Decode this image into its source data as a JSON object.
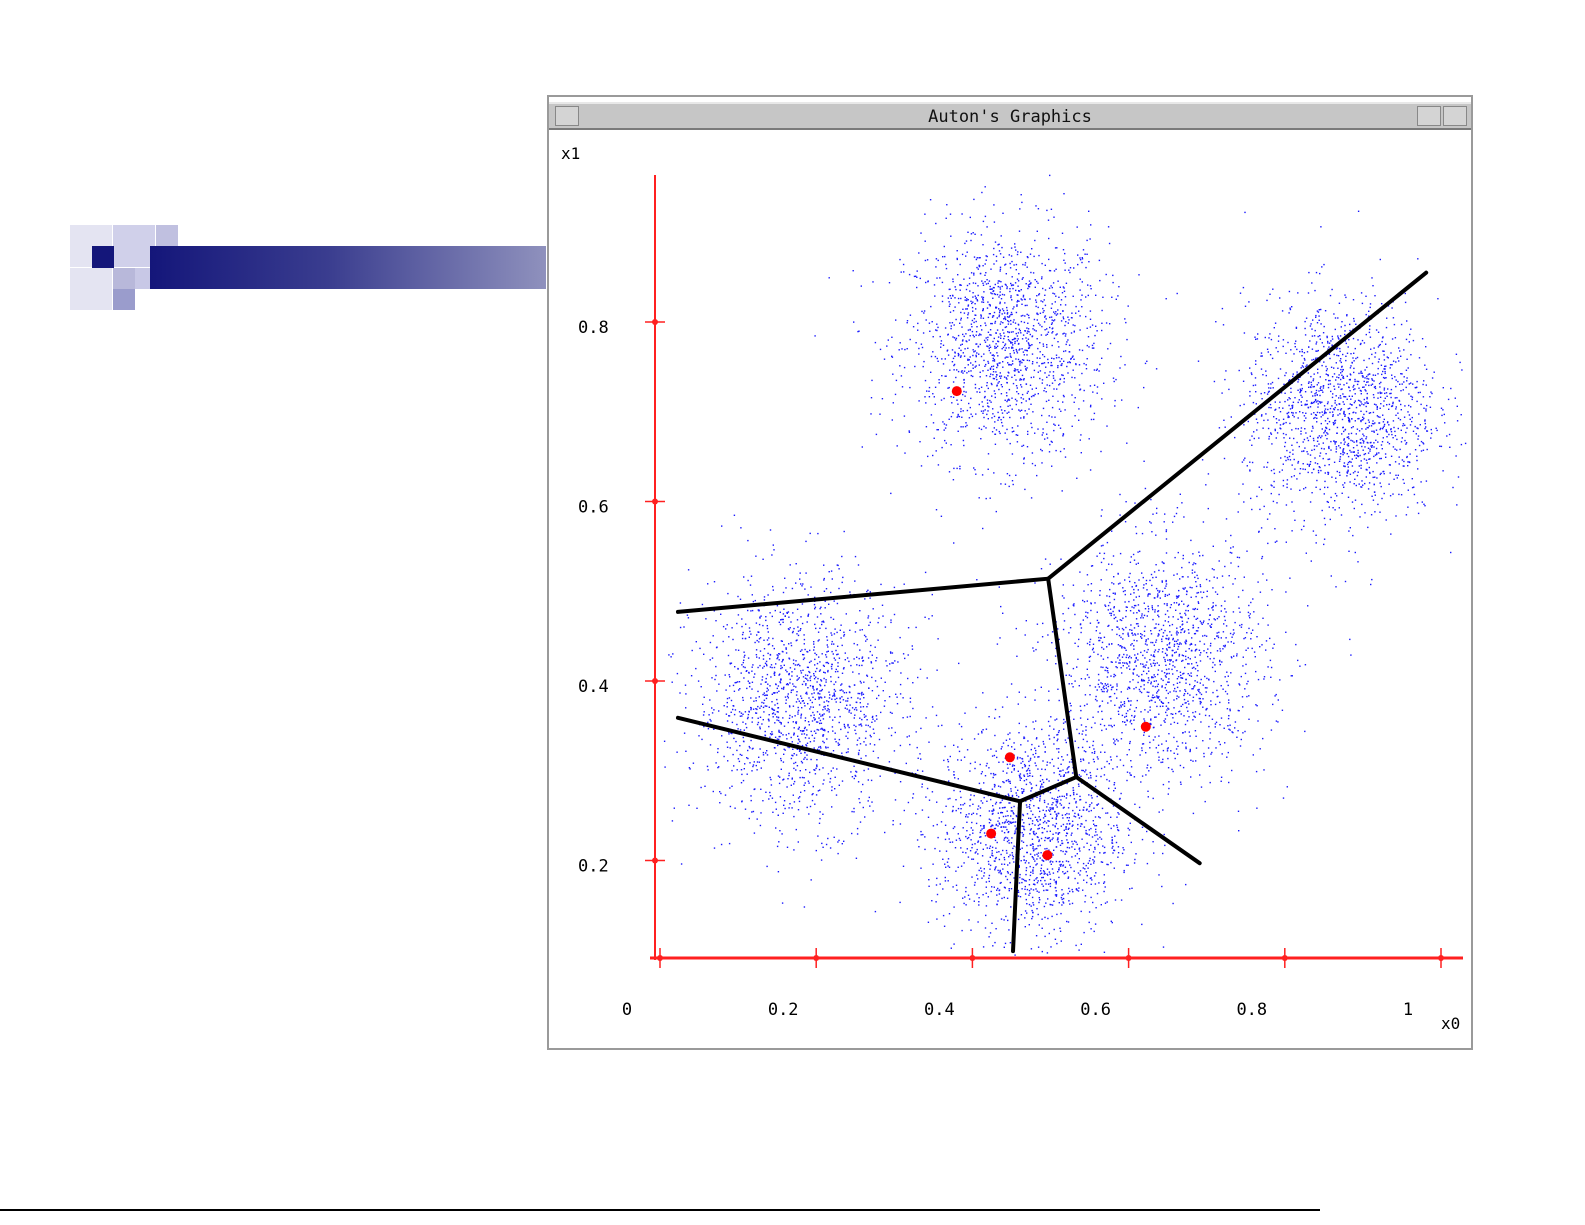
{
  "window": {
    "title": "Auton's Graphics"
  },
  "chart_data": {
    "type": "scatter",
    "xlabel": "x0",
    "ylabel": "x1",
    "xlim": [
      0,
      1
    ],
    "ylim": [
      0.09,
      0.96
    ],
    "x_ticks": [
      0,
      0.2,
      0.4,
      0.6,
      0.8,
      1
    ],
    "x_tick_labels": [
      "0",
      "0.2",
      "0.4",
      "0.6",
      "0.8",
      "1"
    ],
    "y_ticks": [
      0.2,
      0.4,
      0.6,
      0.8
    ],
    "y_tick_labels": [
      "0.2",
      "0.4",
      "0.6",
      "0.8"
    ],
    "grid": false,
    "colors": {
      "points": "#1a1aff",
      "centroids": "#ff0000",
      "axes": "#ff2020",
      "boundaries": "#000000"
    },
    "clusters": [
      {
        "center": [
          0.442,
          0.775
        ],
        "spread": 0.065,
        "count": 1500
      },
      {
        "center": [
          0.871,
          0.702
        ],
        "spread": 0.062,
        "count": 1500
      },
      {
        "center": [
          0.179,
          0.379
        ],
        "spread": 0.068,
        "count": 1500
      },
      {
        "center": [
          0.64,
          0.424
        ],
        "spread": 0.068,
        "count": 1500
      },
      {
        "center": [
          0.474,
          0.234
        ],
        "spread": 0.06,
        "count": 1500
      }
    ],
    "centroids": [
      [
        0.38,
        0.723
      ],
      [
        0.448,
        0.315
      ],
      [
        0.424,
        0.23
      ],
      [
        0.496,
        0.206
      ],
      [
        0.622,
        0.349
      ]
    ],
    "boundaries": [
      [
        [
          0.023,
          0.477
        ],
        [
          0.497,
          0.514
        ]
      ],
      [
        [
          0.497,
          0.514
        ],
        [
          0.981,
          0.855
        ]
      ],
      [
        [
          0.497,
          0.514
        ],
        [
          0.533,
          0.293
        ]
      ],
      [
        [
          0.023,
          0.359
        ],
        [
          0.461,
          0.266
        ]
      ],
      [
        [
          0.461,
          0.266
        ],
        [
          0.533,
          0.293
        ]
      ],
      [
        [
          0.533,
          0.293
        ],
        [
          0.691,
          0.197
        ]
      ],
      [
        [
          0.461,
          0.266
        ],
        [
          0.452,
          0.099
        ]
      ]
    ]
  }
}
